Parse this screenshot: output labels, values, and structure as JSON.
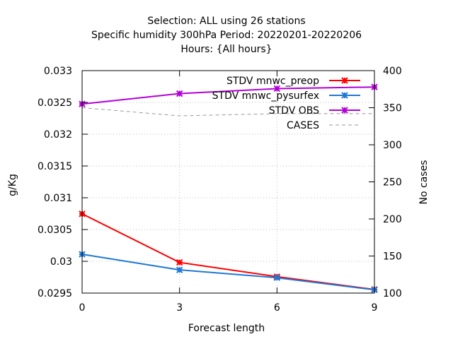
{
  "chart_data": {
    "type": "line",
    "title_lines": [
      "Selection: ALL using    26 stations",
      "Specific humidity 300hPa   Period: 20220201-20220206",
      "Hours: {All hours}"
    ],
    "xlabel": "Forecast length",
    "ylabel": "g/Kg",
    "y2label": "No cases",
    "x": [
      0,
      3,
      6,
      9
    ],
    "x_ticks": [
      0,
      3,
      6,
      9
    ],
    "xlim": [
      0,
      9
    ],
    "ylim": [
      0.0295,
      0.033
    ],
    "y_ticks": [
      0.0295,
      0.03,
      0.0305,
      0.031,
      0.0315,
      0.032,
      0.0325,
      0.033
    ],
    "y_tick_labels": [
      "0.0295",
      "0.03",
      "0.0305",
      "0.031",
      "0.0315",
      "0.032",
      "0.0325",
      "0.033"
    ],
    "y2lim": [
      100,
      400
    ],
    "y2_ticks": [
      100,
      150,
      200,
      250,
      300,
      350,
      400
    ],
    "grid": true,
    "legend_position": "top-right",
    "series": [
      {
        "name": "STDV mnwc_preop",
        "color": "#ff0000",
        "marker": "cross",
        "axis": "y",
        "values": [
          0.030747,
          0.029983,
          0.029758,
          0.029557
        ]
      },
      {
        "name": "STDV mnwc_pysurfex",
        "color": "#1f78d4",
        "marker": "cross",
        "axis": "y",
        "values": [
          0.030111,
          0.029865,
          0.029742,
          0.029552
        ]
      },
      {
        "name": "STDV OBS",
        "color": "#b300d6",
        "marker": "cross",
        "axis": "y",
        "values": [
          0.032475,
          0.032639,
          0.032717,
          0.032742
        ]
      },
      {
        "name": "CASES",
        "color": "#999999",
        "marker": "none",
        "dash": true,
        "axis": "y2",
        "values": [
          350,
          339,
          342,
          342
        ]
      }
    ]
  }
}
